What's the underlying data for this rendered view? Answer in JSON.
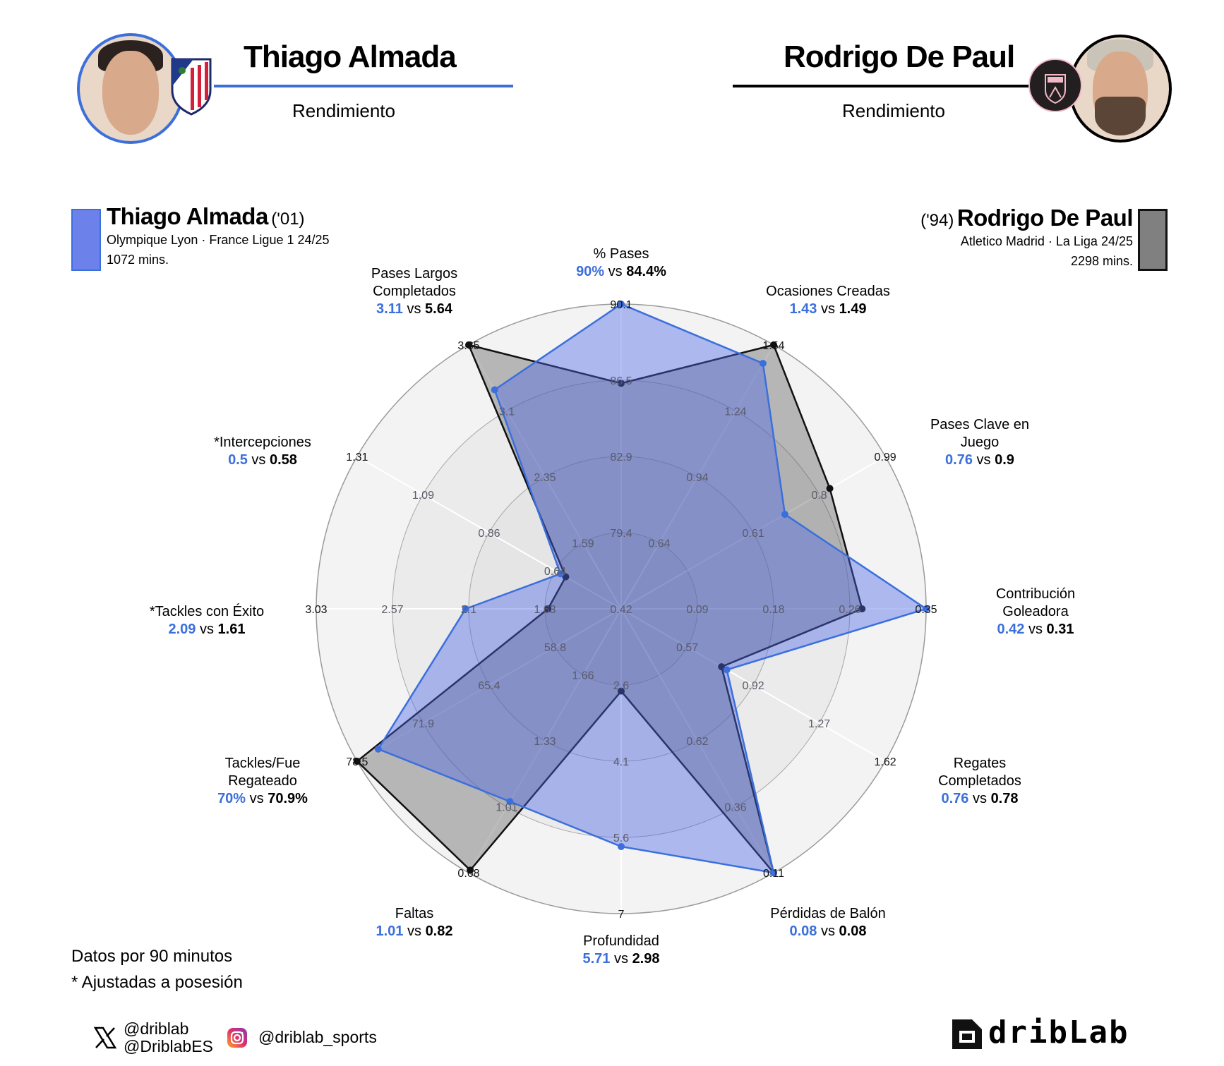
{
  "header": {
    "left": {
      "player": "Thiago Almada",
      "subtitle": "Rendimiento",
      "club_badge": "atletico-madrid-crest",
      "accent": "#3b6fdc"
    },
    "right": {
      "player": "Rodrigo De Paul",
      "subtitle": "Rendimiento",
      "club_badge": "inter-miami-crest",
      "accent": "#000000"
    }
  },
  "legend": {
    "left": {
      "name": "Thiago Almada",
      "year": "('01)",
      "team_league": "Olympique Lyon · France Ligue 1 24/25",
      "minutes": "1072 mins.",
      "color": "#3b6fdc"
    },
    "right": {
      "name": "Rodrigo De Paul",
      "year": "('94)",
      "team_league": "Atletico Madrid · La Liga 24/25",
      "minutes": "2298 mins.",
      "color": "#808080"
    }
  },
  "labels": [
    {
      "name": "% Pases",
      "a": "90%",
      "b": "84.4%"
    },
    {
      "name": "Ocasiones Creadas",
      "a": "1.43",
      "b": "1.49"
    },
    {
      "name": "Pases Clave en Juego",
      "a": "0.76",
      "b": "0.9"
    },
    {
      "name": "Contribución Goleadora",
      "a": "0.42",
      "b": "0.31"
    },
    {
      "name": "Regates Completados",
      "a": "0.76",
      "b": "0.78"
    },
    {
      "name": "Pérdidas de Balón",
      "a": "0.08",
      "b": "0.08"
    },
    {
      "name": "Profundidad",
      "a": "5.71",
      "b": "2.98"
    },
    {
      "name": "Faltas",
      "a": "1.01",
      "b": "0.82"
    },
    {
      "name": "Tackles/Fue Regateado",
      "a": "70%",
      "b": "70.9%"
    },
    {
      "name": "*Tackles con Éxito",
      "a": "2.09",
      "b": "1.61"
    },
    {
      "name": "*Intercepciones",
      "a": "0.5",
      "b": "0.58"
    },
    {
      "name": "Pases Largos Completados",
      "a": "3.11",
      "b": "5.64"
    }
  ],
  "label_lines": {
    "l0": [
      "% Pases"
    ],
    "l1": [
      "Ocasiones Creadas"
    ],
    "l2": [
      "Pases Clave en",
      "Juego"
    ],
    "l3": [
      "Contribución",
      "Goleadora"
    ],
    "l4": [
      "Regates",
      "Completados"
    ],
    "l5": [
      "Pérdidas de Balón"
    ],
    "l6": [
      "Profundidad"
    ],
    "l7": [
      "Faltas"
    ],
    "l8": [
      "Tackles/Fue",
      "Regateado"
    ],
    "l9": [
      "*Tackles con Éxito"
    ],
    "l10": [
      "*Intercepciones"
    ],
    "l11": [
      "Pases Largos",
      "Completados"
    ]
  },
  "vs_word": "vs",
  "footer": {
    "note1": "Datos por 90 minutos",
    "note2": "* Ajustadas a posesión",
    "x_handle1": "@driblab",
    "x_handle2": "@DriblabES",
    "instagram_handle": "@driblab_sports",
    "brand": "dribLab"
  },
  "chart_data": {
    "type": "radar",
    "title": "Thiago Almada vs Rodrigo De Paul — Rendimiento",
    "note": "Datos por 90 minutos; * Ajustadas a posesión",
    "categories": [
      "% Pases",
      "Ocasiones Creadas",
      "Pases Clave en Juego",
      "Contribución Goleadora",
      "Regates Completados",
      "Pérdidas de Balón",
      "Profundidad",
      "Faltas",
      "Tackles/Fue Regateado",
      "*Tackles con Éxito",
      "*Intercepciones",
      "Pases Largos Completados"
    ],
    "series": [
      {
        "name": "Thiago Almada",
        "color": "#3b6fdc",
        "values": [
          90,
          1.43,
          0.76,
          0.42,
          0.76,
          0.08,
          5.71,
          1.01,
          70,
          2.09,
          0.5,
          3.11
        ]
      },
      {
        "name": "Rodrigo De Paul",
        "color": "#808080",
        "values": [
          84.4,
          1.49,
          0.9,
          0.31,
          0.78,
          0.08,
          2.98,
          0.82,
          70.9,
          1.61,
          0.58,
          5.64
        ]
      }
    ],
    "axis_ticks": [
      [
        "79.4",
        "82.9",
        "86.5",
        "90.1"
      ],
      [
        "0.64",
        "0.94",
        "1.24",
        "1.54"
      ],
      [
        "0.61",
        "0.8",
        "0.99"
      ],
      [
        "0.09",
        "0.18",
        "0.26",
        "0.35"
      ],
      [
        "0.57",
        "0.92",
        "1.27",
        "1.62"
      ],
      [
        "0.62",
        "0.36",
        "0.11"
      ],
      [
        "2.6",
        "4.1",
        "5.6",
        "7"
      ],
      [
        "1.66",
        "1.33",
        "1.01",
        "0.68"
      ],
      [
        "58.8",
        "65.4",
        "71.9",
        "78.5"
      ],
      [
        "1.63",
        "2.1",
        "2.57",
        "3.03"
      ],
      [
        "0.42",
        "0.64",
        "0.86",
        "1.09",
        "1.31"
      ],
      [
        "1.59",
        "2.35",
        "3.1",
        "3.85"
      ]
    ],
    "legend_position": "top-left / top-right"
  }
}
